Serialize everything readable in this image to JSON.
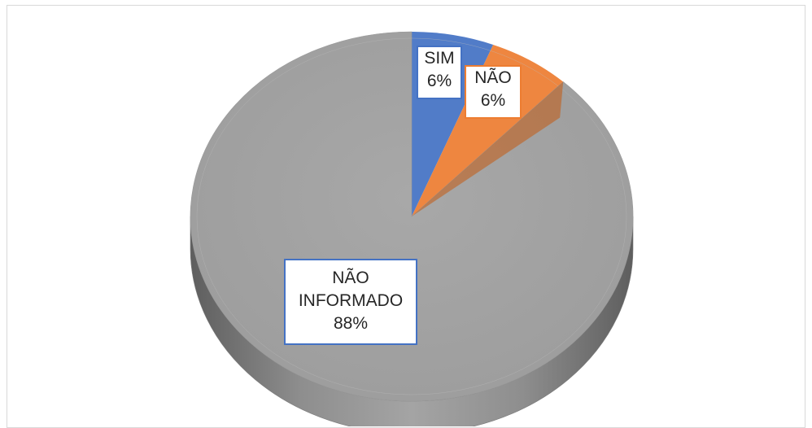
{
  "chart_data": {
    "type": "pie",
    "style": "3d",
    "slices": [
      {
        "label": "SIM",
        "value": 6,
        "percent_label": "6%",
        "color": "#4472c4"
      },
      {
        "label": "NÃO",
        "value": 6,
        "percent_label": "6%",
        "color": "#ed7d31"
      },
      {
        "label": "NÃO INFORMADO",
        "value": 88,
        "percent_label": "88%",
        "color": "#a5a5a5"
      }
    ],
    "legend": "none",
    "data_labels": "category and percent, boxed callouts"
  },
  "labels": {
    "sim": {
      "name": "SIM",
      "pct": "6%"
    },
    "nao": {
      "name": "NÃO",
      "pct": "6%"
    },
    "nao_informado": {
      "name_line1": "NÃO",
      "name_line2": "INFORMADO",
      "pct": "88%"
    }
  }
}
